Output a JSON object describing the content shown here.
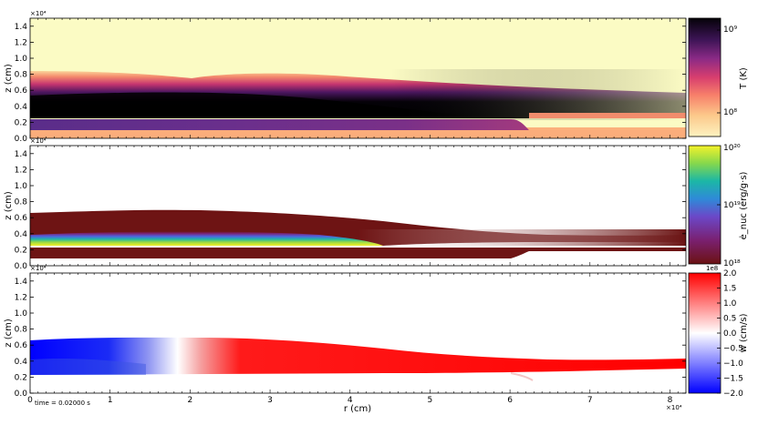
{
  "chart_data": [
    {
      "type": "heatmap",
      "panel": "temperature",
      "x_range": [
        0,
        82000
      ],
      "y_range": [
        0,
        15000
      ],
      "ylabel": "z   (cm)",
      "y_ticks": [
        "0.0",
        "0.2",
        "0.4",
        "0.6",
        "0.8",
        "1.0",
        "1.2",
        "1.4"
      ],
      "y_multiplier": "×10⁴",
      "colorbar": {
        "label": "T   (K)",
        "scale": "log",
        "range": [
          60000000,
          1400000000
        ],
        "tick_labels": [
          "10⁹",
          "10⁸"
        ],
        "colors": [
          "#fdf2c0",
          "#fba274",
          "#e5466a",
          "#7e2a85",
          "#1a0c30",
          "#000000"
        ]
      },
      "structure": {
        "hot_layer_top_z": 8000,
        "hot_core_z": [
          2800,
          5200
        ],
        "cool_ambient_color": "#fbfbc4",
        "fuel_layer_z": [
          800,
          2200
        ]
      }
    },
    {
      "type": "heatmap",
      "panel": "energy_generation",
      "x_range": [
        0,
        82000
      ],
      "y_range": [
        0,
        15000
      ],
      "ylabel": "z   (cm)",
      "y_ticks": [
        "0.0",
        "0.2",
        "0.4",
        "0.6",
        "0.8",
        "1.0",
        "1.2",
        "1.4"
      ],
      "y_multiplier": "×10⁴",
      "colorbar": {
        "label": "ė_nuc  (erg/g·s)",
        "scale": "log",
        "range": [
          1e+18,
          1e+20
        ],
        "tick_labels": [
          "10²⁰",
          "10¹⁹",
          "10¹⁸"
        ],
        "colors": [
          "#6e1414",
          "#7b2a90",
          "#4f63e0",
          "#1fb7a8",
          "#7ad64e",
          "#f5f228"
        ]
      }
    },
    {
      "type": "heatmap",
      "panel": "vertical_velocity",
      "x_range": [
        0,
        82000
      ],
      "y_range": [
        0,
        15000
      ],
      "xlabel": "r   (cm)",
      "x_ticks": [
        "0",
        "1",
        "2",
        "3",
        "4",
        "5",
        "6",
        "7",
        "8"
      ],
      "x_multiplier": "×10⁴",
      "ylabel": "z   (cm)",
      "y_ticks": [
        "0.0",
        "0.2",
        "0.4",
        "0.6",
        "0.8",
        "1.0",
        "1.2",
        "1.4"
      ],
      "y_multiplier": "×10⁴",
      "colorbar": {
        "label": "w   (cm/s)",
        "scale": "linear",
        "range": [
          -200000000,
          200000000
        ],
        "offset_label": "1e8",
        "tick_labels": [
          "2.0",
          "1.5",
          "1.0",
          "0.5",
          "0.0",
          "−0.5",
          "−1.0",
          "−1.5",
          "−2.0"
        ],
        "colors": [
          "#0000ff",
          "#ffffff",
          "#ff0000"
        ]
      },
      "annotation": "time =  0.02000 s"
    }
  ]
}
